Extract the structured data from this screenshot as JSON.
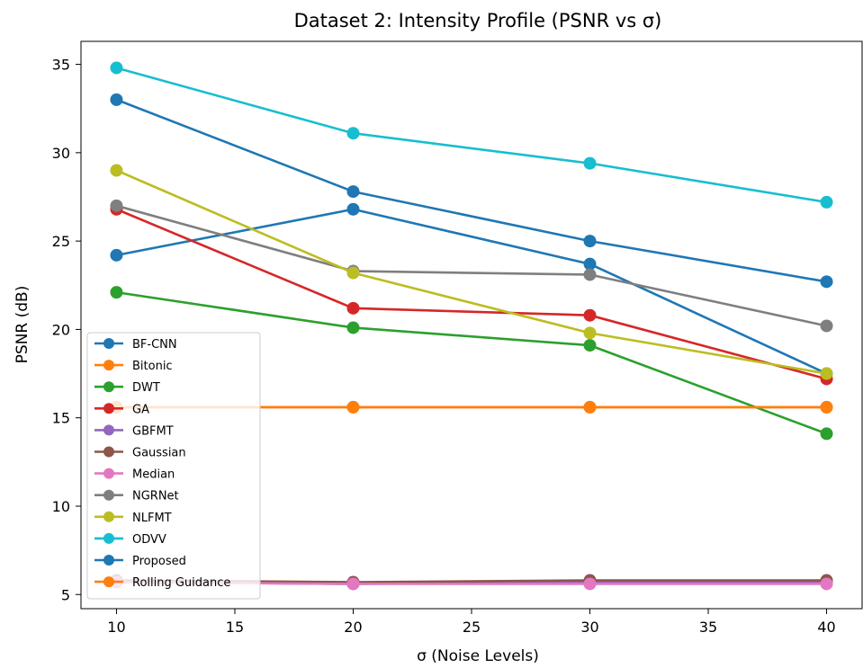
{
  "chart_data": {
    "type": "line",
    "title": "Dataset 2: Intensity Profile (PSNR vs σ)",
    "xlabel": "σ (Noise Levels)",
    "ylabel": "PSNR (dB)",
    "x": [
      10,
      20,
      30,
      40
    ],
    "xlim": [
      8.5,
      41.5
    ],
    "ylim": [
      4.2,
      36.3
    ],
    "xticks": [
      10,
      15,
      20,
      25,
      30,
      35,
      40
    ],
    "yticks": [
      5,
      10,
      15,
      20,
      25,
      30,
      35
    ],
    "grid": false,
    "legend_position": "lower-left",
    "series": [
      {
        "name": "BF-CNN",
        "color": "#1f77b4",
        "values": [
          24.2,
          26.8,
          23.7,
          17.5
        ]
      },
      {
        "name": "Bitonic",
        "color": "#ff7f0e",
        "values": [
          15.6,
          15.6,
          15.6,
          15.6
        ]
      },
      {
        "name": "DWT",
        "color": "#2ca02c",
        "values": [
          22.1,
          20.1,
          19.1,
          14.1
        ]
      },
      {
        "name": "GA",
        "color": "#d62728",
        "values": [
          26.8,
          21.2,
          20.8,
          17.2
        ]
      },
      {
        "name": "GBFMT",
        "color": "#9467bd",
        "values": [
          5.7,
          5.6,
          5.7,
          5.7
        ]
      },
      {
        "name": "Gaussian",
        "color": "#8c564b",
        "values": [
          5.8,
          5.7,
          5.8,
          5.8
        ]
      },
      {
        "name": "Median",
        "color": "#e377c2",
        "values": [
          5.7,
          5.6,
          5.6,
          5.6
        ]
      },
      {
        "name": "NGRNet",
        "color": "#7f7f7f",
        "values": [
          27.0,
          23.3,
          23.1,
          20.2
        ]
      },
      {
        "name": "NLFMT",
        "color": "#bcbd22",
        "values": [
          29.0,
          23.2,
          19.8,
          17.5
        ]
      },
      {
        "name": "ODVV",
        "color": "#17becf",
        "values": [
          34.8,
          31.1,
          29.4,
          27.2
        ]
      },
      {
        "name": "Proposed",
        "color": "#1f77b4",
        "values": [
          33.0,
          27.8,
          25.0,
          22.7
        ]
      },
      {
        "name": "Rolling Guidance",
        "color": "#ff7f0e",
        "values": [
          15.6,
          15.6,
          15.6,
          15.6
        ]
      }
    ]
  }
}
